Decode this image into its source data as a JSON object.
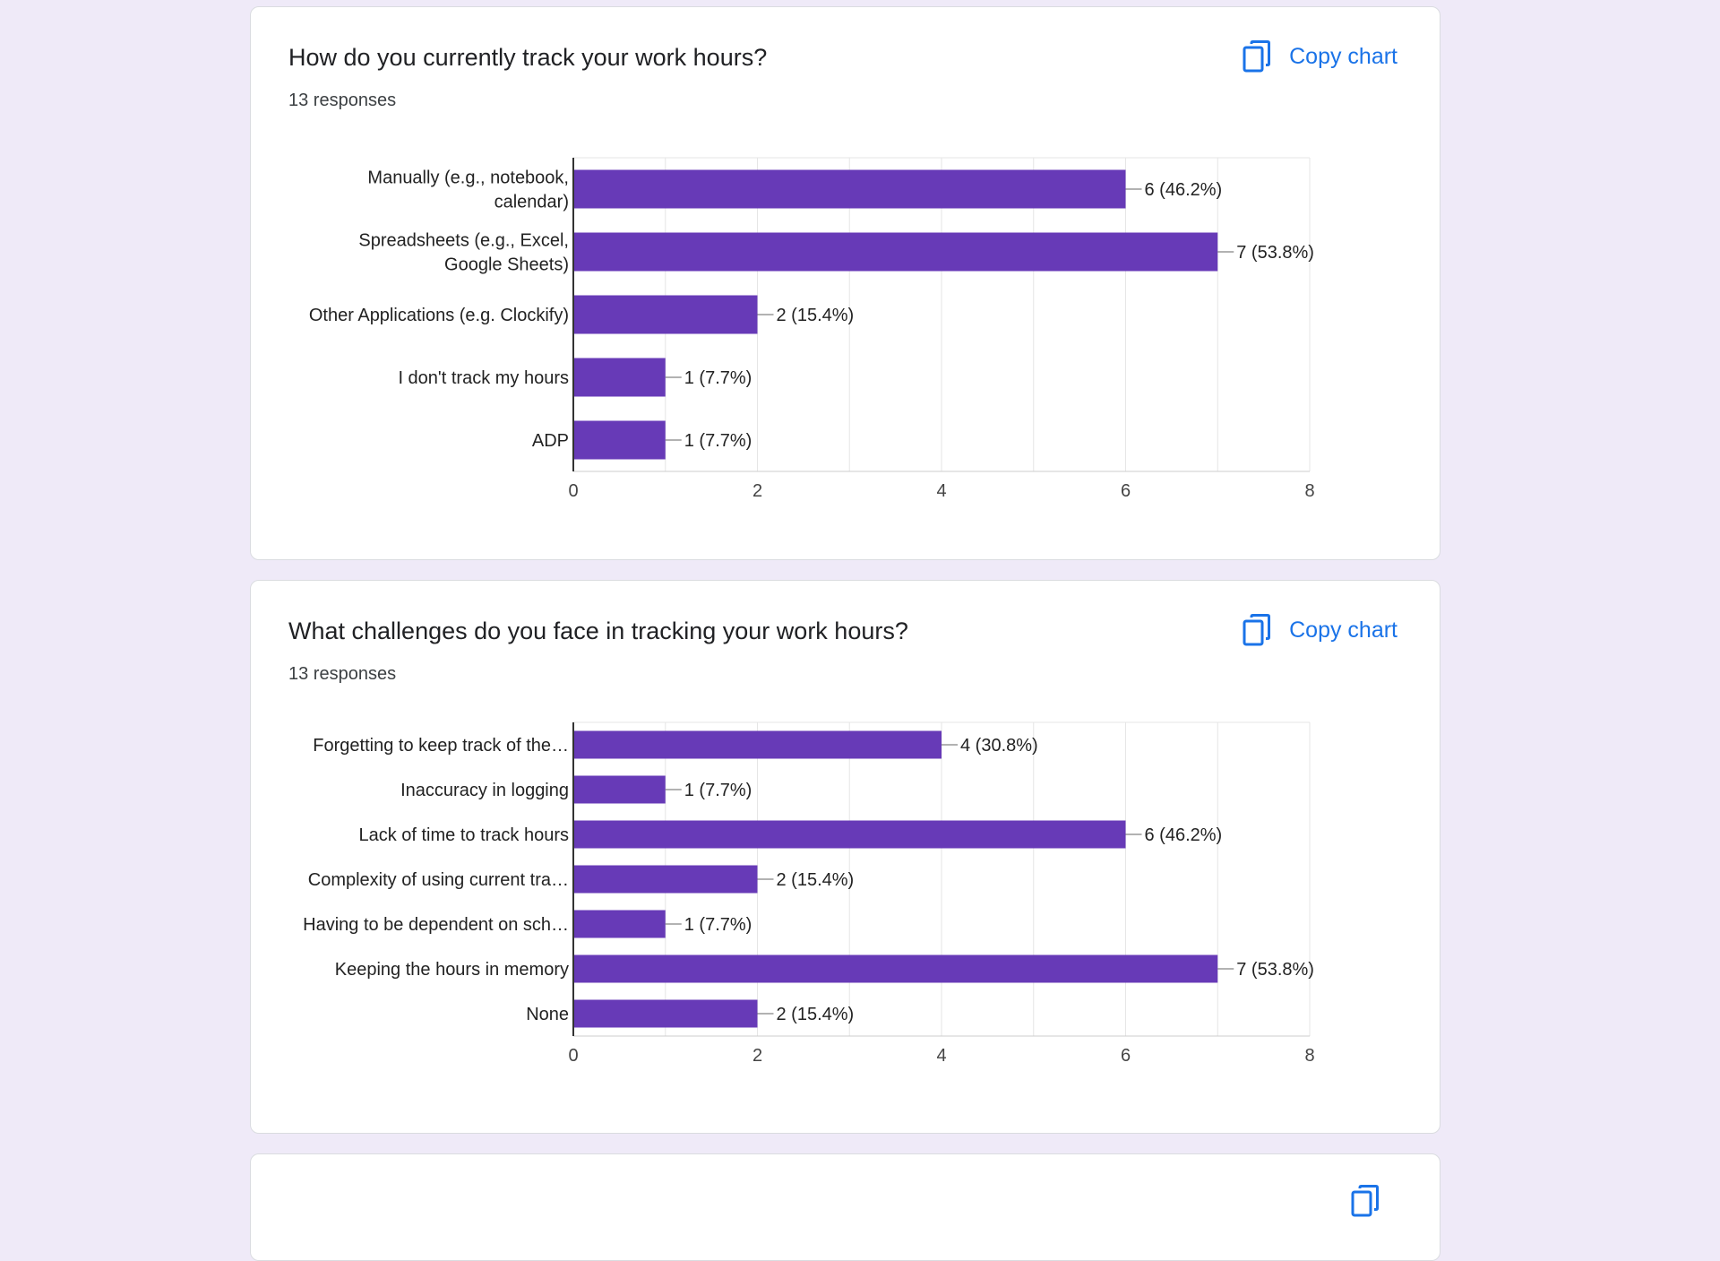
{
  "colors": {
    "bar": "#673ab7",
    "accent": "#1a73e8",
    "background": "#efeaf8"
  },
  "copy_icon": "copy-icon",
  "cards": [
    {
      "title": "How do you currently track your work hours?",
      "responses": "13 responses",
      "copy_label": "Copy chart"
    },
    {
      "title": "What challenges do you face in tracking your work hours?",
      "responses": "13 responses",
      "copy_label": "Copy chart"
    }
  ],
  "chart_data": [
    {
      "type": "bar",
      "orientation": "horizontal",
      "categories": [
        [
          "Manually (e.g., notebook,",
          "calendar)"
        ],
        [
          "Spreadsheets (e.g., Excel,",
          "Google Sheets)"
        ],
        [
          "Other Applications (e.g. Clockify)"
        ],
        [
          "I don't track my hours"
        ],
        [
          "ADP"
        ]
      ],
      "values": [
        6,
        7,
        2,
        1,
        1
      ],
      "data_labels": [
        "6 (46.2%)",
        "7 (53.8%)",
        "2 (15.4%)",
        "1 (7.7%)",
        "1 (7.7%)"
      ],
      "xlim": [
        0,
        8
      ],
      "xticks": [
        "0",
        "2",
        "4",
        "6",
        "8"
      ],
      "grid": true
    },
    {
      "type": "bar",
      "orientation": "horizontal",
      "categories": [
        [
          "Forgetting to keep track of the…"
        ],
        [
          "Inaccuracy in logging"
        ],
        [
          "Lack of time to track hours"
        ],
        [
          "Complexity of using current tra…"
        ],
        [
          "Having to be dependent on sch…"
        ],
        [
          "Keeping the hours in memory"
        ],
        [
          "None"
        ]
      ],
      "values": [
        4,
        1,
        6,
        2,
        1,
        7,
        2
      ],
      "data_labels": [
        "4 (30.8%)",
        "1 (7.7%)",
        "6 (46.2%)",
        "2 (15.4%)",
        "1 (7.7%)",
        "7 (53.8%)",
        "2 (15.4%)"
      ],
      "xlim": [
        0,
        8
      ],
      "xticks": [
        "0",
        "2",
        "4",
        "6",
        "8"
      ],
      "grid": true
    }
  ]
}
